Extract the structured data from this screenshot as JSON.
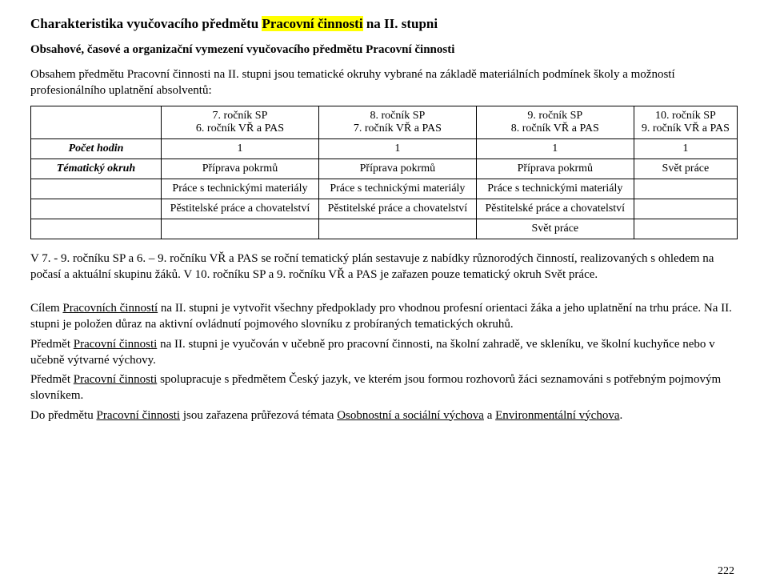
{
  "title": {
    "prefix": "Charakteristika vyučovacího předmětu ",
    "highlight": "Pracovní činnosti",
    "suffix": " na II. stupni"
  },
  "subtitle": "Obsahové, časové a organizační vymezení vyučovacího předmětu Pracovní činnosti",
  "intro": "Obsahem předmětu Pracovní činnosti na II. stupni jsou tematické okruhy vybrané na základě materiálních podmínek školy a možností profesionálního uplatnění absolventů:",
  "table": {
    "col_widths": [
      "150px",
      "auto",
      "auto",
      "auto",
      "auto"
    ],
    "header": [
      "",
      "7. ročník SP\n6. ročník VŘ a PAS",
      "8. ročník SP\n7. ročník VŘ a PAS",
      "9. ročník SP\n8. ročník VŘ a PAS",
      "10. ročník SP\n9. ročník VŘ a PAS"
    ],
    "rows": [
      {
        "label": "Počet hodin",
        "cells": [
          "1",
          "1",
          "1",
          "1"
        ]
      },
      {
        "label": "Tématický okruh",
        "cells": [
          "Příprava pokrmů",
          "Příprava pokrmů",
          "Příprava pokrmů",
          "Svět práce"
        ]
      },
      {
        "label": "",
        "cells": [
          "Práce s technickými materiály",
          "Práce s technickými materiály",
          "Práce s technickými materiály",
          ""
        ]
      },
      {
        "label": "",
        "cells": [
          "Pěstitelské práce a chovatelství",
          "Pěstitelské práce a chovatelství",
          "Pěstitelské práce a chovatelství",
          ""
        ]
      },
      {
        "label": "",
        "cells": [
          "",
          "",
          "Svět práce",
          ""
        ]
      }
    ]
  },
  "p1": "V 7. - 9. ročníku SP a 6. – 9. ročníku VŘ a PAS se roční tematický plán sestavuje z nabídky různorodých činností, realizovaných s ohledem na počasí a aktuální skupinu žáků. V 10. ročníku SP a 9. ročníku VŘ a PAS je zařazen pouze tematický okruh Svět práce.",
  "p2a": "Cílem ",
  "p2u": "Pracovních činností",
  "p2b": " na II. stupni je vytvořit všechny předpoklady pro vhodnou profesní orientaci žáka a jeho uplatnění na trhu práce. Na II. stupni je položen důraz na aktivní ovládnutí pojmového slovníku z probíraných tematických okruhů.",
  "p3a": "Předmět ",
  "p3u": "Pracovní činnosti",
  "p3b": " na II. stupni je vyučován v učebně pro pracovní činnosti, na školní zahradě, ve skleníku, ve školní kuchyňce nebo v učebně výtvarné výchovy.",
  "p4a": "Předmět ",
  "p4u": "Pracovní činnosti",
  "p4b": " spolupracuje s předmětem Český jazyk, ve kterém jsou formou rozhovorů žáci seznamováni s potřebným pojmovým slovníkem.",
  "p5a": "Do předmětu ",
  "p5u1": "Pracovní činnosti",
  "p5b": " jsou zařazena průřezová témata ",
  "p5u2": "Osobnostní a sociální výchova",
  "p5c": " a ",
  "p5u3": "Environmentální výchova",
  "p5d": ".",
  "page_number": "222"
}
